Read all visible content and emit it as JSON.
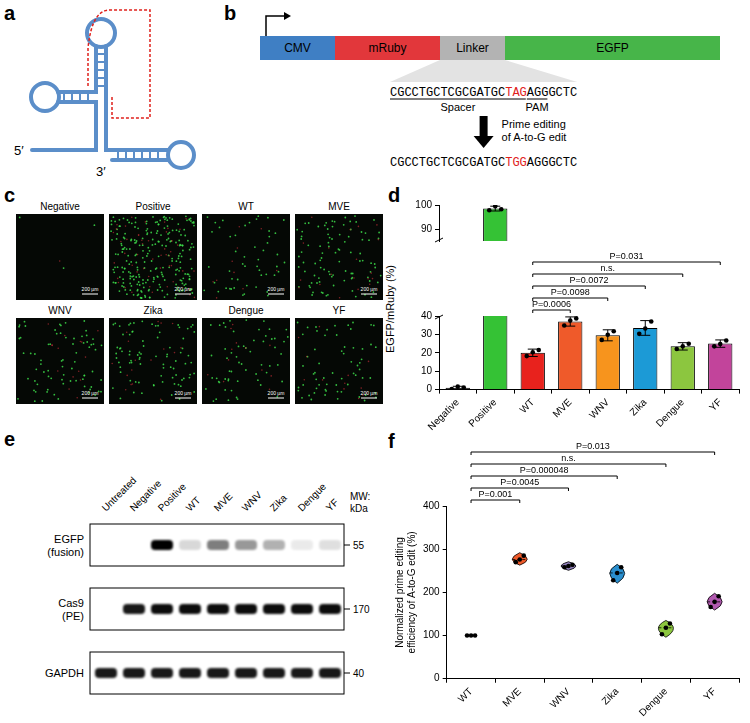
{
  "panel_a": {
    "panel_label": "a",
    "five_prime": "5′",
    "three_prime": "3′"
  },
  "panel_b": {
    "panel_label": "b",
    "elements": [
      {
        "name": "CMV",
        "color": "#3f7fc4"
      },
      {
        "name": "mRuby",
        "color": "#e2373b"
      },
      {
        "name": "Linker",
        "color": "#b3b3b3"
      },
      {
        "name": "EGFP",
        "color": "#47b549"
      }
    ],
    "original_sequence": [
      {
        "text": "CGCCTGCTCGCGATGC",
        "region": "Spacer"
      },
      {
        "text": "TAG",
        "region": "Spacer",
        "highlight": true
      },
      {
        "text": "AGG",
        "region": "PAM"
      },
      {
        "text": "GCTC"
      }
    ],
    "edit_label": [
      "Prime editing",
      "of A-to-G edit"
    ],
    "edited_sequence": [
      {
        "text": "CGCCTGCTCGCGATGC"
      },
      {
        "text": "TGG",
        "highlight": true
      },
      {
        "text": "AGGGCTC"
      }
    ],
    "highlight_color": "#e0201b"
  },
  "panel_c": {
    "panel_label": "c",
    "images": [
      "Negative",
      "Positive",
      "WT",
      "MVE",
      "WNV",
      "Zika",
      "Dengue",
      "YF"
    ],
    "scale_bar": "200 µm"
  },
  "panel_e": {
    "panel_label": "e",
    "lanes": [
      "Untreated",
      "Negative",
      "Positive",
      "WT",
      "MVE",
      "WNV",
      "Zika",
      "Dengue",
      "YF"
    ],
    "mw_header": [
      "MW:",
      "kDa"
    ],
    "rows": [
      {
        "label": "EGFP",
        "sublabel": "(fusion)",
        "mw": 55,
        "intensity": [
          0,
          0,
          1,
          0.15,
          0.5,
          0.4,
          0.3,
          0.08,
          0.12
        ]
      },
      {
        "label": "Cas9",
        "sublabel": "(PE)",
        "mw": 170,
        "intensity": [
          0,
          0.9,
          0.95,
          0.95,
          0.95,
          0.95,
          0.95,
          0.95,
          0.95
        ]
      },
      {
        "label": "GAPDH",
        "mw": 40,
        "intensity": [
          0.9,
          0.9,
          0.9,
          0.9,
          0.9,
          0.9,
          0.9,
          0.9,
          0.9
        ]
      }
    ]
  },
  "chart_data": [
    {
      "panel_label": "d",
      "type": "bar",
      "categories": [
        "Negative",
        "Positive",
        "WT",
        "MVE",
        "WNV",
        "Zika",
        "Dengue",
        "YF"
      ],
      "values": [
        1,
        98.5,
        20,
        37,
        29.5,
        33.5,
        23.5,
        25
      ],
      "errors": [
        0.8,
        1,
        2,
        2.5,
        3,
        4,
        2,
        2
      ],
      "points": [
        [
          0.3,
          1.6,
          1.1
        ],
        [
          97.8,
          99.5,
          98.2
        ],
        [
          18.2,
          20.3,
          21.5
        ],
        [
          34.8,
          37.5,
          38.7
        ],
        [
          27,
          29.8,
          31.7
        ],
        [
          30.3,
          33.2,
          37
        ],
        [
          22.1,
          23.5,
          24.9
        ],
        [
          23.5,
          24.8,
          26.7
        ]
      ],
      "colors": [
        "#000000",
        "#35c235",
        "#e8221d",
        "#ef5a2a",
        "#f7941d",
        "#1c9ad6",
        "#8cc63f",
        "#c2449b"
      ],
      "ylabel": "EGFP/mRuby (%)",
      "ylim": [
        0,
        100
      ],
      "y_break": [
        40,
        85
      ],
      "yticks": [
        0,
        10,
        20,
        30,
        40,
        90,
        100
      ],
      "grid": false,
      "comparisons": [
        {
          "from": "WT",
          "to": "MVE",
          "label": "P=0.0006"
        },
        {
          "from": "WT",
          "to": "WNV",
          "label": "P=0.0098"
        },
        {
          "from": "WT",
          "to": "Zika",
          "label": "P=0.0072"
        },
        {
          "from": "WT",
          "to": "Dengue",
          "label": "n.s."
        },
        {
          "from": "WT",
          "to": "YF",
          "label": "P=0.031"
        }
      ]
    },
    {
      "panel_label": "f",
      "type": "violin",
      "categories": [
        "WT",
        "MVE",
        "WNV",
        "Zika",
        "Dengue",
        "YF"
      ],
      "points": [
        [
          100,
          100,
          100
        ],
        [
          270,
          276,
          285
        ],
        [
          258,
          261,
          264
        ],
        [
          228,
          245,
          258
        ],
        [
          103,
          118,
          128
        ],
        [
          166,
          178,
          191
        ]
      ],
      "colors": [
        "#e8221d",
        "#ef5a2a",
        "#8f7fb8",
        "#2a8fcf",
        "#8cc63f",
        "#b25ab0"
      ],
      "ylabel": "Normalized prime editing efficiency of A-to-G edit (%)",
      "ylim": [
        0,
        400
      ],
      "yticks": [
        0,
        100,
        200,
        300,
        400
      ],
      "grid": false,
      "comparisons": [
        {
          "from": "WT",
          "to": "MVE",
          "label": "P=0.001"
        },
        {
          "from": "WT",
          "to": "WNV",
          "label": "P=0.0045"
        },
        {
          "from": "WT",
          "to": "Zika",
          "label": "P=0.000048"
        },
        {
          "from": "WT",
          "to": "Dengue",
          "label": "n.s."
        },
        {
          "from": "WT",
          "to": "YF",
          "label": "P=0.013"
        }
      ]
    }
  ]
}
